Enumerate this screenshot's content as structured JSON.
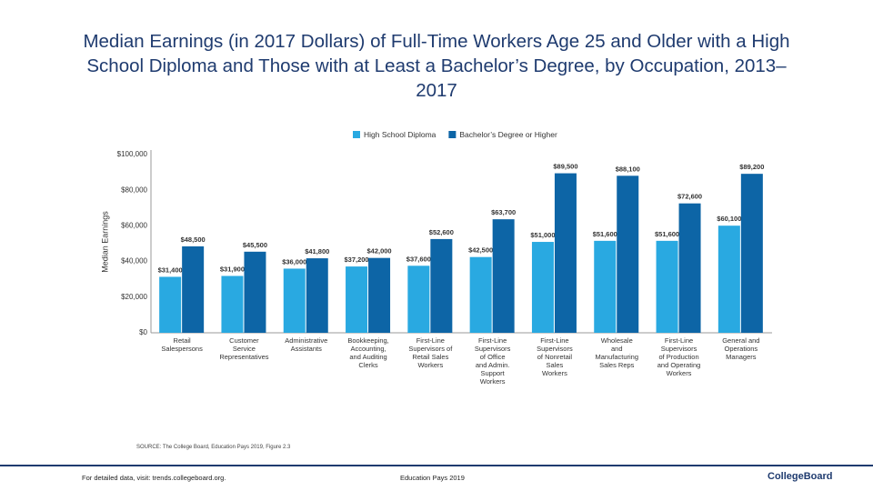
{
  "chart_data": {
    "type": "bar",
    "title": "Median Earnings (in 2017 Dollars) of Full-Time Workers Age 25 and Older with a High School Diploma and Those with at Least a Bachelor’s Degree, by Occupation, 2013–2017",
    "y_label": "Median Earnings",
    "categories": [
      "Retail\nSalespersons",
      "Customer\nService\nRepresentatives",
      "Administrative\nAssistants",
      "Bookkeeping,\nAccounting,\nand Auditing\nClerks",
      "First-Line\nSupervisors of\nRetail Sales\nWorkers",
      "First-Line\nSupervisors\nof Office\nand Admin.\nSupport\nWorkers",
      "First-Line\nSupervisors\nof Nonretail\nSales\nWorkers",
      "Wholesale\nand\nManufacturing\nSales Reps",
      "First-Line\nSupervisors\nof Production\nand Operating\nWorkers",
      "General and\nOperations\nManagers"
    ],
    "series": [
      {
        "name": "High School Diploma",
        "color": "#29a9e1",
        "values": [
          31400,
          31900,
          36000,
          37200,
          37600,
          42500,
          51000,
          51600,
          51600,
          60100
        ],
        "value_labels": [
          "$31,400",
          "$31,900",
          "$36,000",
          "$37,200",
          "$37,600",
          "$42,500",
          "$51,000",
          "$51,600",
          "$51,600",
          "$60,100"
        ]
      },
      {
        "name": "Bachelor’s Degree or Higher",
        "color": "#0d65a6",
        "values": [
          48500,
          45500,
          41800,
          42000,
          52600,
          63700,
          89500,
          88100,
          72600,
          89200
        ],
        "value_labels": [
          "$48,500",
          "$45,500",
          "$41,800",
          "$42,000",
          "$52,600",
          "$63,700",
          "$89,500",
          "$88,100",
          "$72,600",
          "$89,200"
        ]
      }
    ],
    "ylim": [
      0,
      100000
    ],
    "yticks": [
      {
        "value": 0,
        "label": "$0"
      },
      {
        "value": 20000,
        "label": "$20,000"
      },
      {
        "value": 40000,
        "label": "$40,000"
      },
      {
        "value": 60000,
        "label": "$60,000"
      },
      {
        "value": 80000,
        "label": "$80,000"
      },
      {
        "value": 100000,
        "label": "$100,000"
      }
    ],
    "legend": "top",
    "source": "SOURCE: The College Board, Education Pays 2019, Figure 2.3"
  },
  "footer": {
    "left": "For detailed data, visit: trends.collegeboard.org.",
    "center": "Education Pays 2019",
    "logo": "CollegeBoard"
  }
}
